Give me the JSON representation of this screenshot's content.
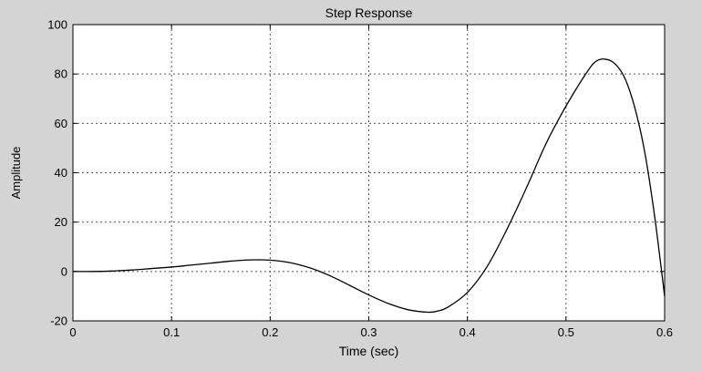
{
  "chart_data": {
    "type": "line",
    "title": "Step Response",
    "xlabel": "Time (sec)",
    "ylabel": "Amplitude",
    "xlim": [
      0,
      0.6
    ],
    "ylim": [
      -20,
      100
    ],
    "grid": true,
    "x_ticks": [
      0,
      0.1,
      0.2,
      0.3,
      0.4,
      0.5,
      0.6
    ],
    "x_tick_labels": [
      "0",
      "0.1",
      "0.2",
      "0.3",
      "0.4",
      "0.5",
      "0.6"
    ],
    "y_ticks": [
      -20,
      0,
      20,
      40,
      60,
      80,
      100
    ],
    "y_tick_labels": [
      "-20",
      "0",
      "20",
      "40",
      "60",
      "80",
      "100"
    ],
    "series": [
      {
        "color": "#000000",
        "x": [
          0,
          0.02,
          0.04,
          0.06,
          0.08,
          0.1,
          0.12,
          0.14,
          0.16,
          0.18,
          0.2,
          0.22,
          0.24,
          0.26,
          0.28,
          0.3,
          0.32,
          0.34,
          0.36,
          0.37,
          0.38,
          0.4,
          0.42,
          0.44,
          0.46,
          0.48,
          0.5,
          0.52,
          0.53,
          0.54,
          0.55,
          0.56,
          0.57,
          0.58,
          0.59,
          0.6
        ],
        "y": [
          0,
          0,
          0.2,
          0.6,
          1.2,
          1.8,
          2.6,
          3.4,
          4.2,
          4.7,
          4.6,
          3.6,
          1.5,
          -1.6,
          -5.5,
          -9.5,
          -13.0,
          -15.5,
          -16.5,
          -16.0,
          -14.5,
          -8.5,
          2.0,
          17.0,
          34.0,
          52.0,
          67.0,
          80.0,
          85.0,
          86.0,
          84.0,
          78.0,
          66.0,
          48.0,
          22.0,
          -10.0
        ]
      }
    ]
  }
}
